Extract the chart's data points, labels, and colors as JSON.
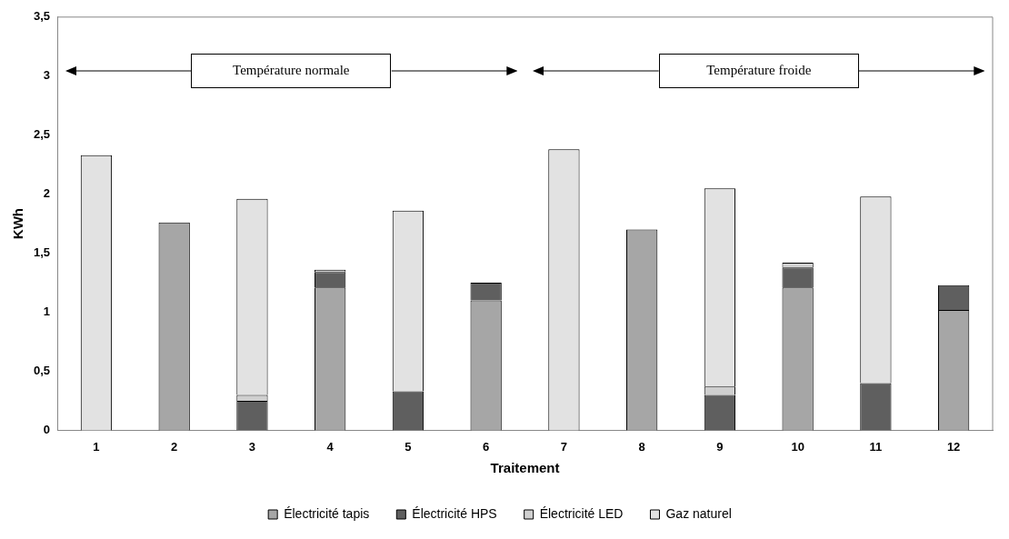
{
  "chart_data": {
    "type": "bar",
    "stacked": true,
    "xlabel": "Traitement",
    "ylabel": "KWh",
    "categories": [
      "1",
      "2",
      "3",
      "4",
      "5",
      "6",
      "7",
      "8",
      "9",
      "10",
      "11",
      "12"
    ],
    "series": [
      {
        "name": "Électricité tapis",
        "color": "#a6a6a6",
        "values": [
          null,
          1.76,
          null,
          1.21,
          null,
          1.1,
          null,
          1.7,
          null,
          1.21,
          null,
          1.02
        ]
      },
      {
        "name": "Électricité HPS",
        "color": "#5f5f5f",
        "values": [
          null,
          null,
          0.25,
          0.13,
          0.33,
          0.15,
          null,
          null,
          0.3,
          0.17,
          0.4,
          0.21
        ]
      },
      {
        "name": "Électricité LED",
        "color": "#cfcfcf",
        "values": [
          null,
          null,
          0.05,
          0.02,
          null,
          null,
          null,
          null,
          0.07,
          0.04,
          null,
          null
        ]
      },
      {
        "name": "Gaz naturel",
        "color": "#e2e2e2",
        "values": [
          2.33,
          null,
          1.66,
          null,
          1.53,
          null,
          2.38,
          null,
          1.68,
          null,
          1.58,
          null
        ]
      }
    ],
    "ylim": [
      0,
      3.5
    ],
    "yticks": [
      0,
      {
        "value": 0.5,
        "label": "0,5"
      },
      1,
      {
        "value": 1.5,
        "label": "1,5"
      },
      2,
      {
        "value": 2.5,
        "label": "2,5"
      },
      3,
      {
        "value": 3.5,
        "label": "3,5"
      }
    ],
    "annotations": [
      "Température normale",
      "Température froide"
    ],
    "grid": false,
    "legend": "bottom"
  }
}
